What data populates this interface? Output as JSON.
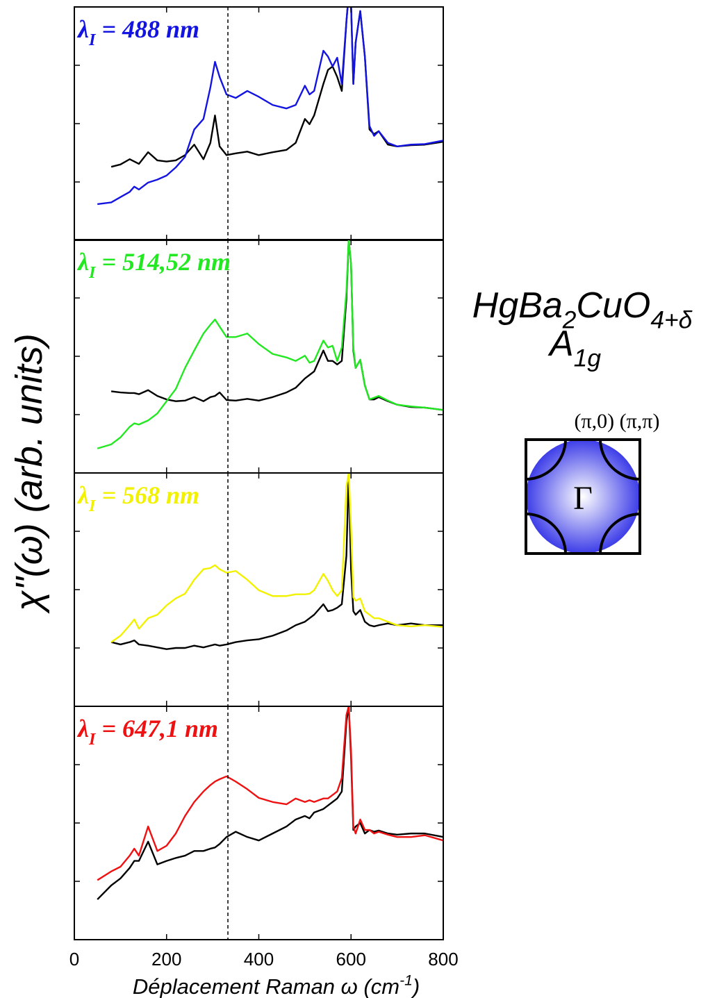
{
  "chart_data": [
    {
      "type": "line",
      "label": {
        "symbol": "λ",
        "sub": "I",
        "text": " = 488 nm"
      },
      "x": [
        50,
        80,
        100,
        120,
        130,
        140,
        160,
        180,
        200,
        220,
        240,
        260,
        280,
        295,
        305,
        315,
        330,
        350,
        375,
        400,
        430,
        460,
        480,
        500,
        510,
        520,
        540,
        550,
        560,
        570,
        580,
        590,
        595,
        600,
        605,
        610,
        620,
        630,
        640,
        650,
        660,
        680,
        700,
        730,
        760,
        800
      ],
      "series": [
        {
          "color": "#000000",
          "values": [
            null,
            1.26,
            1.3,
            1.39,
            1.35,
            1.31,
            1.51,
            1.37,
            1.35,
            1.37,
            1.46,
            1.64,
            1.39,
            1.67,
            2.14,
            1.61,
            1.46,
            1.49,
            1.52,
            1.46,
            1.51,
            1.55,
            1.67,
            2.08,
            1.99,
            2.14,
            2.68,
            2.92,
            2.98,
            2.8,
            2.56,
            3.75,
            4.23,
            4.05,
            2.68,
            3.39,
            3.93,
            3.15,
            1.9,
            1.82,
            1.87,
            1.64,
            1.61,
            1.63,
            1.64,
            1.69
          ]
        },
        {
          "color": "#1414e0",
          "values": [
            0.62,
            0.65,
            0.74,
            0.83,
            0.92,
            0.87,
            0.99,
            1.04,
            1.11,
            1.25,
            1.43,
            1.9,
            2.08,
            2.62,
            3.06,
            2.8,
            2.5,
            2.44,
            2.56,
            2.46,
            2.32,
            2.26,
            2.32,
            2.65,
            2.5,
            2.56,
            3.25,
            3.15,
            2.98,
            3.13,
            2.68,
            3.75,
            4.23,
            4.05,
            2.68,
            3.39,
            3.93,
            3.15,
            1.96,
            1.79,
            1.87,
            1.67,
            1.61,
            1.64,
            1.65,
            1.71
          ]
        }
      ],
      "xlim": [
        0,
        800
      ],
      "xticks": [
        0,
        200,
        400,
        600,
        800
      ],
      "ylim": [
        0,
        4
      ],
      "yticks": [
        1,
        2,
        3
      ],
      "marker_x": 333
    },
    {
      "type": "line",
      "label": {
        "symbol": "λ",
        "sub": "I",
        "text": " = 514,52 nm"
      },
      "x": [
        50,
        80,
        100,
        120,
        130,
        140,
        160,
        180,
        200,
        220,
        240,
        260,
        280,
        295,
        305,
        315,
        330,
        350,
        375,
        400,
        430,
        460,
        480,
        500,
        510,
        520,
        540,
        550,
        560,
        570,
        580,
        590,
        595,
        600,
        605,
        610,
        620,
        630,
        640,
        650,
        660,
        680,
        700,
        730,
        760,
        800
      ],
      "series": [
        {
          "color": "#000000",
          "values": [
            null,
            1.4,
            1.38,
            1.37,
            1.37,
            1.35,
            1.42,
            1.32,
            1.26,
            1.23,
            1.24,
            1.3,
            1.23,
            1.3,
            1.32,
            1.38,
            1.25,
            1.24,
            1.27,
            1.24,
            1.3,
            1.38,
            1.46,
            1.62,
            1.68,
            1.74,
            2.1,
            1.92,
            1.92,
            1.86,
            1.92,
            2.99,
            4.0,
            3.58,
            2.1,
            1.8,
            1.94,
            1.5,
            1.26,
            1.26,
            1.3,
            1.23,
            1.17,
            1.13,
            1.12,
            1.08
          ]
        },
        {
          "color": "#22e822",
          "values": [
            0.42,
            0.49,
            0.61,
            0.79,
            0.85,
            0.83,
            0.9,
            1.02,
            1.23,
            1.44,
            1.8,
            2.1,
            2.39,
            2.54,
            2.63,
            2.51,
            2.33,
            2.33,
            2.39,
            2.21,
            2.04,
            1.98,
            1.92,
            2.01,
            1.89,
            1.92,
            2.27,
            2.15,
            2.18,
            1.92,
            2.15,
            3.11,
            4.0,
            3.58,
            2.15,
            1.8,
            1.94,
            1.5,
            1.26,
            1.29,
            1.32,
            1.24,
            1.17,
            1.14,
            1.12,
            1.08
          ]
        }
      ],
      "xlim": [
        0,
        800
      ],
      "xticks": [
        0,
        200,
        400,
        600,
        800
      ],
      "ylim": [
        0,
        4
      ],
      "yticks": [
        1,
        2,
        3
      ],
      "marker_x": 333
    },
    {
      "type": "line",
      "label": {
        "symbol": "λ",
        "sub": "I",
        "text": " = 568 nm"
      },
      "x": [
        50,
        80,
        100,
        120,
        130,
        140,
        160,
        180,
        200,
        220,
        240,
        260,
        280,
        295,
        305,
        315,
        330,
        350,
        375,
        400,
        430,
        460,
        480,
        500,
        510,
        520,
        540,
        550,
        560,
        570,
        580,
        590,
        595,
        600,
        605,
        610,
        620,
        630,
        640,
        650,
        660,
        680,
        700,
        730,
        760,
        800
      ],
      "series": [
        {
          "color": "#000000",
          "values": [
            null,
            1.1,
            1.06,
            1.1,
            1.13,
            1.06,
            1.04,
            1.01,
            0.98,
            1.0,
            1.0,
            1.04,
            1.01,
            1.04,
            1.06,
            1.04,
            1.06,
            1.1,
            1.13,
            1.15,
            1.21,
            1.3,
            1.39,
            1.45,
            1.51,
            1.57,
            1.75,
            1.63,
            1.65,
            1.69,
            1.75,
            2.58,
            4.0,
            2.35,
            1.63,
            1.57,
            1.65,
            1.45,
            1.39,
            1.37,
            1.39,
            1.42,
            1.39,
            1.42,
            1.39,
            1.39
          ]
        },
        {
          "color": "#f2f200",
          "values": [
            null,
            1.1,
            1.21,
            1.39,
            1.49,
            1.33,
            1.51,
            1.57,
            1.73,
            1.85,
            1.93,
            2.17,
            2.35,
            2.37,
            2.42,
            2.35,
            2.29,
            2.32,
            2.17,
            1.99,
            1.89,
            1.89,
            1.92,
            1.92,
            1.93,
            1.99,
            2.27,
            2.15,
            1.99,
            1.89,
            1.99,
            3.77,
            4.0,
            3.06,
            1.87,
            1.81,
            1.85,
            1.63,
            1.57,
            1.51,
            1.51,
            1.45,
            1.39,
            1.37,
            1.39,
            1.36
          ]
        }
      ],
      "xlim": [
        0,
        800
      ],
      "xticks": [
        0,
        200,
        400,
        600,
        800
      ],
      "ylim": [
        0,
        4
      ],
      "yticks": [
        1,
        2,
        3
      ],
      "marker_x": 333
    },
    {
      "type": "line",
      "label": {
        "symbol": "λ",
        "sub": "I",
        "text": " = 647,1 nm"
      },
      "x": [
        50,
        80,
        100,
        120,
        130,
        140,
        160,
        180,
        200,
        220,
        240,
        260,
        280,
        295,
        305,
        315,
        330,
        350,
        375,
        400,
        430,
        460,
        480,
        500,
        510,
        520,
        540,
        550,
        560,
        570,
        580,
        590,
        595,
        600,
        605,
        610,
        620,
        630,
        640,
        650,
        660,
        680,
        700,
        730,
        760,
        800
      ],
      "series": [
        {
          "color": "#000000",
          "values": [
            0.69,
            0.93,
            1.05,
            1.23,
            1.35,
            1.35,
            1.68,
            1.29,
            1.35,
            1.4,
            1.44,
            1.52,
            1.52,
            1.56,
            1.58,
            1.64,
            1.76,
            1.85,
            1.76,
            1.7,
            1.82,
            1.94,
            2.06,
            2.12,
            2.08,
            2.18,
            2.24,
            2.3,
            2.36,
            2.42,
            2.54,
            3.73,
            4.0,
            3.13,
            1.88,
            1.94,
            2.0,
            1.82,
            1.88,
            1.85,
            1.87,
            1.82,
            1.8,
            1.82,
            1.82,
            1.76
          ]
        },
        {
          "color": "#ee1111",
          "values": [
            1.02,
            1.17,
            1.25,
            1.44,
            1.56,
            1.44,
            1.94,
            1.52,
            1.61,
            1.82,
            2.12,
            2.36,
            2.54,
            2.65,
            2.71,
            2.75,
            2.8,
            2.71,
            2.58,
            2.43,
            2.36,
            2.32,
            2.42,
            2.36,
            2.39,
            2.36,
            2.42,
            2.42,
            2.48,
            2.54,
            2.77,
            3.85,
            4.0,
            3.25,
            1.94,
            1.82,
            2.06,
            1.88,
            1.88,
            1.82,
            1.85,
            1.8,
            1.76,
            1.76,
            1.79,
            1.7
          ]
        }
      ],
      "xlim": [
        0,
        800
      ],
      "xticks": [
        0,
        200,
        400,
        600,
        800
      ],
      "ylim": [
        0,
        4
      ],
      "yticks": [
        1,
        2,
        3
      ],
      "marker_x": 333,
      "xlabel": {
        "text": "Déplacement Raman ω (cm",
        "sup": "-1",
        "end": ")"
      }
    }
  ],
  "ylabel": "χ\"(ω) (arb. units)",
  "inset": {
    "compound": [
      "HgBa",
      "2",
      "CuO",
      "4+δ"
    ],
    "symmetry": [
      "A",
      "1g"
    ],
    "points": "(π,0) (π,π)",
    "center": "Γ"
  }
}
